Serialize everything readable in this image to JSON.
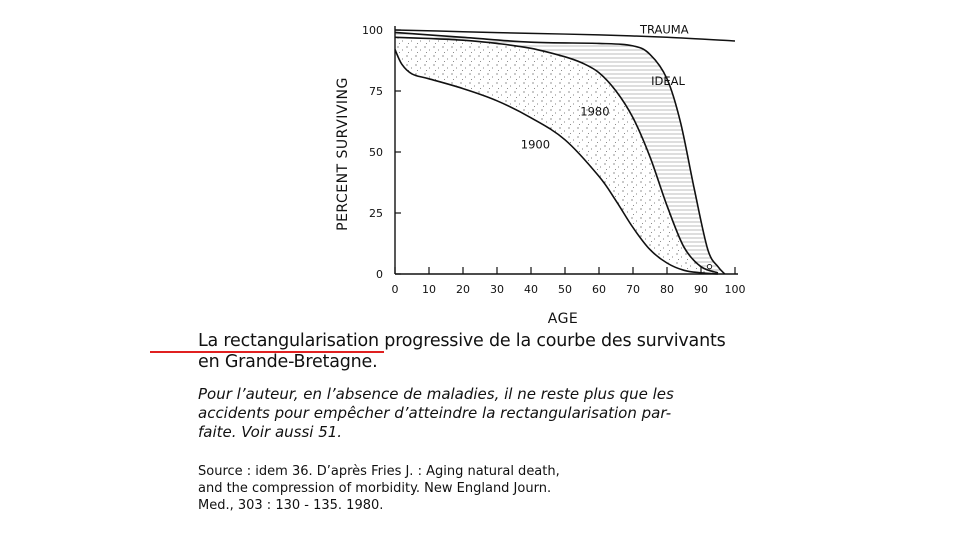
{
  "chart_data": {
    "type": "line",
    "xlabel": "AGE",
    "ylabel": "PERCENT SURVIVING",
    "xlim": [
      0,
      100
    ],
    "ylim": [
      0,
      100
    ],
    "x_ticks": [
      0,
      10,
      20,
      30,
      40,
      50,
      60,
      70,
      80,
      90,
      100
    ],
    "y_ticks": [
      0,
      25,
      50,
      75,
      100
    ],
    "grid": false,
    "legend": "none",
    "series": [
      {
        "name": "TRAUMA",
        "x": [
          0,
          20,
          40,
          60,
          80,
          100
        ],
        "y": [
          100,
          99.3,
          98.6,
          98,
          97,
          95.5
        ]
      },
      {
        "name": "IDEAL",
        "x": [
          0,
          20,
          40,
          60,
          70,
          75,
          80,
          84,
          88,
          92,
          95,
          97
        ],
        "y": [
          99,
          97,
          95,
          94.5,
          93.5,
          90,
          80,
          62,
          35,
          10,
          3,
          0
        ]
      },
      {
        "name": "1980",
        "x": [
          0,
          10,
          20,
          30,
          40,
          50,
          55,
          60,
          65,
          70,
          75,
          80,
          85,
          90,
          95
        ],
        "y": [
          97,
          96.5,
          95.8,
          94.5,
          92.5,
          89,
          86.5,
          82.5,
          75,
          64,
          48,
          28,
          11,
          3,
          0.5
        ]
      },
      {
        "name": "1900",
        "x": [
          0,
          2,
          5,
          10,
          20,
          30,
          40,
          50,
          60,
          65,
          70,
          75,
          80,
          85,
          90,
          95
        ],
        "y": [
          92,
          86,
          82,
          80,
          76,
          71,
          64,
          55,
          40,
          30,
          19,
          10,
          4.5,
          1.5,
          0.5,
          0
        ]
      }
    ]
  },
  "caption": {
    "line1": "La rectangularisation progressive de la courbe des survivants",
    "line2": "en Grande-Bretagne."
  },
  "note": {
    "line1": "Pour l’auteur, en l’absence de maladies, il ne reste plus que les",
    "line2": "accidents pour empêcher d’atteindre la rectangularisation par-",
    "line3": "faite. Voir aussi 51."
  },
  "source": {
    "line1": "Source : idem 36. D’après Fries J. : Aging natural death,",
    "line2": "and the compression of morbidity. New England Journ.",
    "line3": "Med., 303 : 130 - 135. 1980."
  },
  "colors": {
    "ink": "#111111",
    "highlight_underline": "#e02020"
  }
}
